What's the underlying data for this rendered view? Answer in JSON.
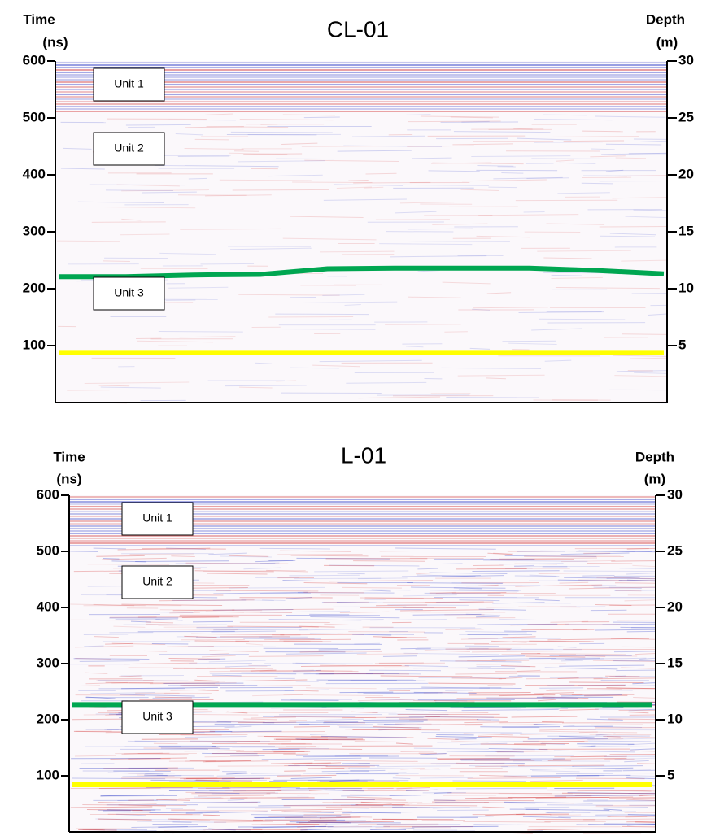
{
  "chart_data": [
    {
      "type": "radargram",
      "title": "CL-01",
      "ylabel": "Time",
      "ylabel_unit": "(ns)",
      "y2label": "Depth",
      "y2label_unit": "(m)",
      "ylim": [
        0,
        600
      ],
      "yticks": [
        100,
        200,
        300,
        400,
        500,
        600
      ],
      "y2lim": [
        0,
        30
      ],
      "y2ticks": [
        5,
        10,
        15,
        20,
        25,
        30
      ],
      "units": [
        "Unit 1",
        "Unit 2",
        "Unit 3"
      ],
      "series": [
        {
          "color": "#ffff00",
          "values": [
            88,
            88,
            88,
            88,
            88,
            88,
            88,
            88,
            88,
            88
          ]
        },
        {
          "color": "#00a651",
          "values": [
            221,
            221,
            224,
            225,
            235,
            236,
            236,
            236,
            232,
            226
          ]
        }
      ]
    },
    {
      "type": "radargram",
      "title": "L-01",
      "ylabel": "Time",
      "ylabel_unit": "(ns)",
      "y2label": "Depth",
      "y2label_unit": "(m)",
      "ylim": [
        0,
        600
      ],
      "yticks": [
        100,
        200,
        300,
        400,
        500,
        600
      ],
      "y2lim": [
        0,
        30
      ],
      "y2ticks": [
        5,
        10,
        15,
        20,
        25,
        30
      ],
      "units": [
        "Unit 1",
        "Unit 2",
        "Unit 3"
      ],
      "series": [
        {
          "color": "#ffff00",
          "values": [
            84,
            84,
            84,
            84,
            84,
            84,
            84,
            84,
            84,
            84
          ]
        },
        {
          "color": "#00a651",
          "values": [
            227,
            227,
            227,
            227,
            227,
            227,
            227,
            227,
            227,
            227
          ]
        }
      ]
    }
  ]
}
